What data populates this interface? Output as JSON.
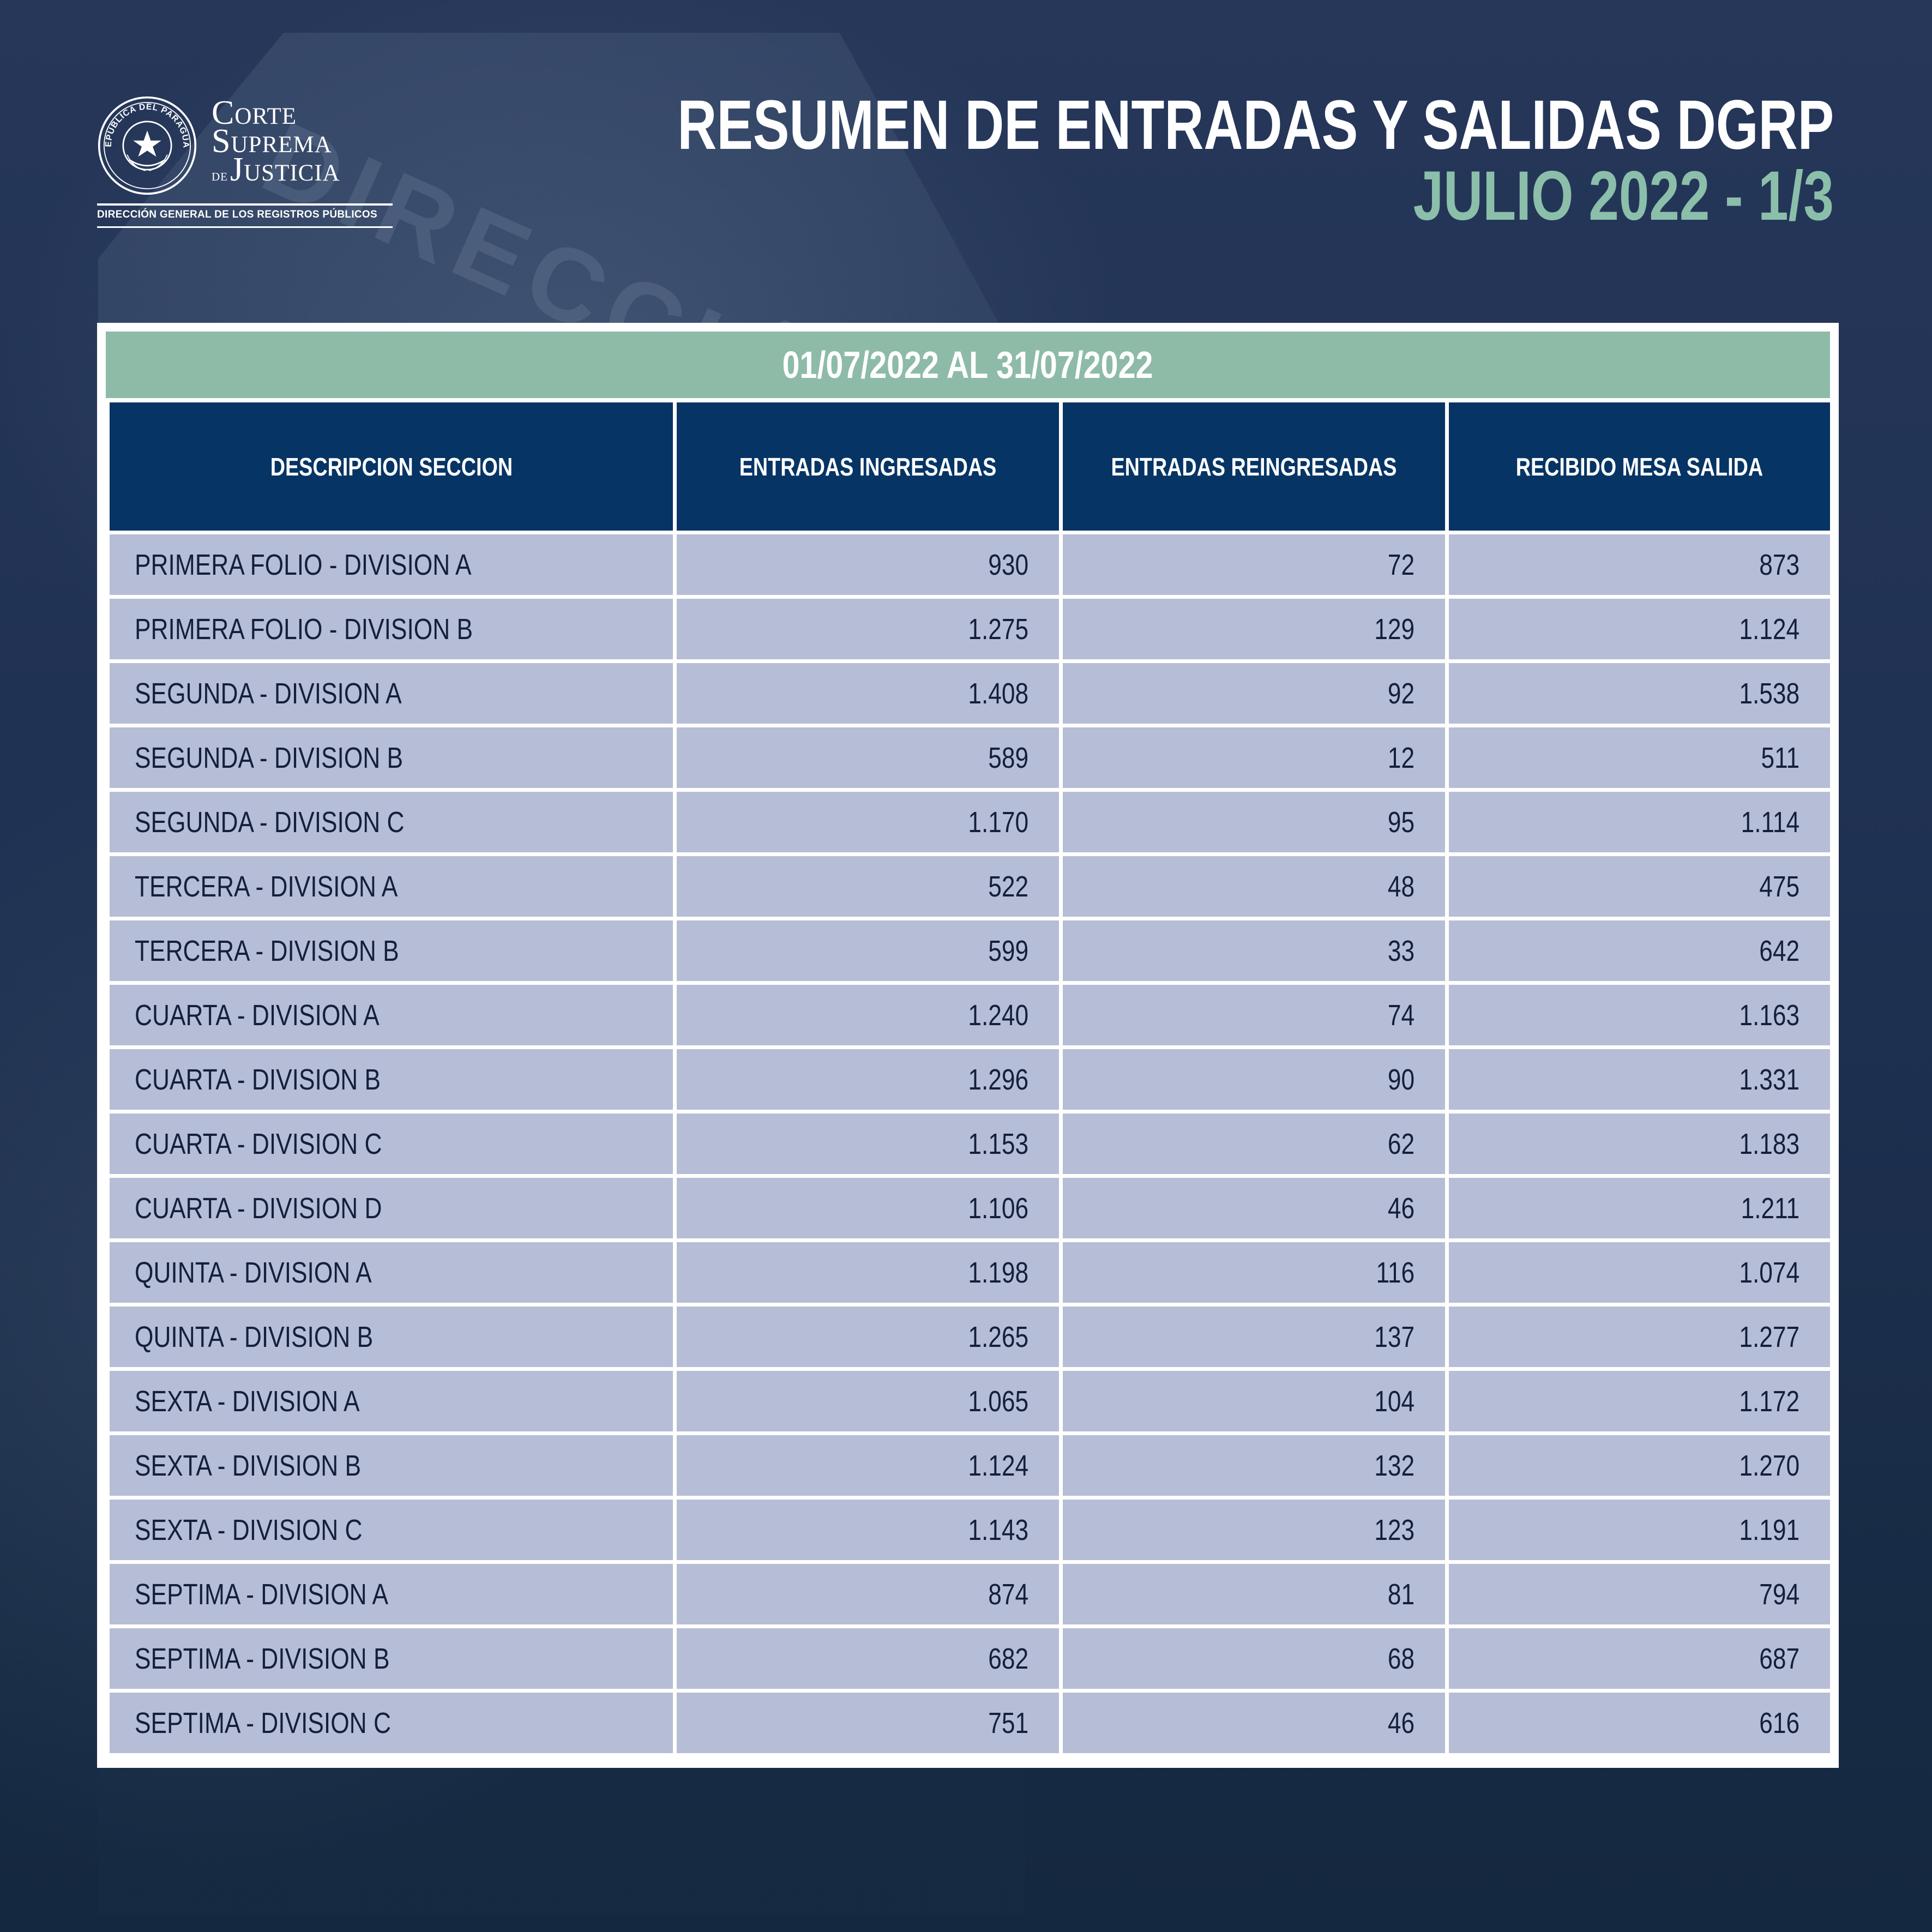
{
  "background": {
    "watermark_text": "DIRECCIÓN"
  },
  "logo": {
    "seal_text": "REPÚBLICA DEL PARAGUAY",
    "line1": "Corte",
    "line2": "Suprema",
    "line3_small": "de",
    "line3": "Justicia",
    "subtitle": "DIRECCIÓN GENERAL DE LOS REGISTROS PÚBLICOS"
  },
  "header": {
    "title": "RESUMEN DE ENTRADAS Y SALIDAS DGRP",
    "subtitle": "JULIO 2022 - 1/3"
  },
  "table": {
    "period": "01/07/2022 AL 31/07/2022",
    "columns": [
      "DESCRIPCION SECCION",
      "ENTRADAS INGRESADAS",
      "ENTRADAS REINGRESADAS",
      "RECIBIDO MESA SALIDA"
    ],
    "rows": [
      [
        "PRIMERA FOLIO - DIVISION A",
        "930",
        "72",
        "873"
      ],
      [
        "PRIMERA FOLIO - DIVISION B",
        "1.275",
        "129",
        "1.124"
      ],
      [
        "SEGUNDA - DIVISION A",
        "1.408",
        "92",
        "1.538"
      ],
      [
        "SEGUNDA - DIVISION B",
        "589",
        "12",
        "511"
      ],
      [
        "SEGUNDA - DIVISION C",
        "1.170",
        "95",
        "1.114"
      ],
      [
        "TERCERA - DIVISION A",
        "522",
        "48",
        "475"
      ],
      [
        "TERCERA - DIVISION B",
        "599",
        "33",
        "642"
      ],
      [
        "CUARTA - DIVISION A",
        "1.240",
        "74",
        "1.163"
      ],
      [
        "CUARTA - DIVISION B",
        "1.296",
        "90",
        "1.331"
      ],
      [
        "CUARTA - DIVISION C",
        "1.153",
        "62",
        "1.183"
      ],
      [
        "CUARTA - DIVISION D",
        "1.106",
        "46",
        "1.211"
      ],
      [
        "QUINTA - DIVISION A",
        "1.198",
        "116",
        "1.074"
      ],
      [
        "QUINTA - DIVISION B",
        "1.265",
        "137",
        "1.277"
      ],
      [
        "SEXTA - DIVISION A",
        "1.065",
        "104",
        "1.172"
      ],
      [
        "SEXTA - DIVISION B",
        "1.124",
        "132",
        "1.270"
      ],
      [
        "SEXTA - DIVISION C",
        "1.143",
        "123",
        "1.191"
      ],
      [
        "SEPTIMA - DIVISION A",
        "874",
        "81",
        "794"
      ],
      [
        "SEPTIMA - DIVISION B",
        "682",
        "68",
        "687"
      ],
      [
        "SEPTIMA - DIVISION C",
        "751",
        "46",
        "616"
      ]
    ]
  },
  "colors": {
    "background": "#1e3050",
    "accent_green": "#8dbba8",
    "header_navy": "#063464",
    "row_fill": "#b6bdd6",
    "text_white": "#ffffff"
  }
}
